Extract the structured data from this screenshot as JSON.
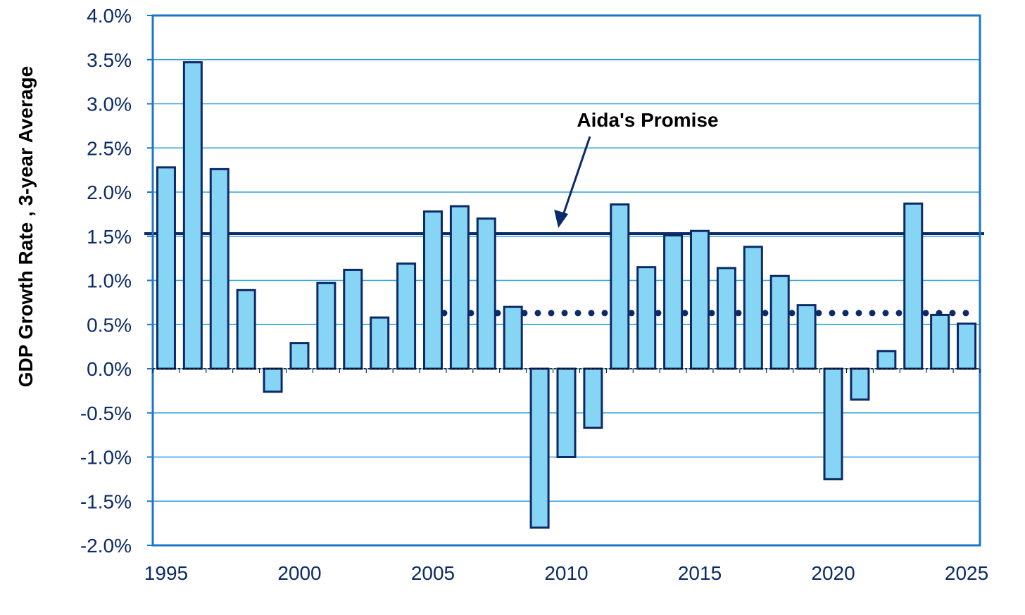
{
  "chart_data": {
    "type": "bar",
    "title": "",
    "xlabel": "",
    "ylabel": "GDP Growth Rate , 3-year Average",
    "ylim": [
      -2.0,
      4.0
    ],
    "xlim": [
      1994.5,
      2025.5
    ],
    "y_tick_labels": [
      "-2.0%",
      "-1.5%",
      "-1.0%",
      "-0.5%",
      "0.0%",
      "0.5%",
      "1.0%",
      "1.5%",
      "2.0%",
      "2.5%",
      "3.0%",
      "3.5%",
      "4.0%"
    ],
    "x_tick_labels": [
      "1995",
      "2000",
      "2005",
      "2010",
      "2015",
      "2020",
      "2025"
    ],
    "grid": "horizontal",
    "series": [
      {
        "x": [
          1995,
          1996,
          1997,
          1998,
          1999,
          2000,
          2001,
          2002,
          2003,
          2004,
          2005,
          2006,
          2007,
          2008,
          2009,
          2010,
          2011,
          2012,
          2013,
          2014,
          2015,
          2016,
          2017,
          2018,
          2019,
          2020,
          2021,
          2022,
          2023,
          2024,
          2025
        ],
        "values": [
          2.28,
          3.47,
          2.26,
          0.89,
          -0.26,
          0.29,
          0.97,
          1.12,
          0.58,
          1.19,
          1.78,
          1.84,
          1.7,
          0.7,
          -1.8,
          -1.0,
          -0.67,
          1.86,
          1.15,
          1.51,
          1.56,
          1.14,
          1.38,
          1.05,
          0.72,
          -1.25,
          -0.35,
          0.2,
          1.87,
          0.61,
          0.51
        ],
        "color": "#87d5f5",
        "edge_color": "#0b2a66"
      }
    ],
    "reference_lines": [
      {
        "value": 1.53,
        "style": "solid",
        "label": "Aida's Promise",
        "color": "#0b2a66"
      },
      {
        "value": 0.63,
        "style": "dotted",
        "x_start": 2005,
        "x_end": 2025,
        "color": "#0b2a66"
      }
    ],
    "annotations": [
      {
        "text": "Aida's Promise",
        "points_to_x": 2009.7,
        "points_to_y": 1.53
      }
    ]
  }
}
